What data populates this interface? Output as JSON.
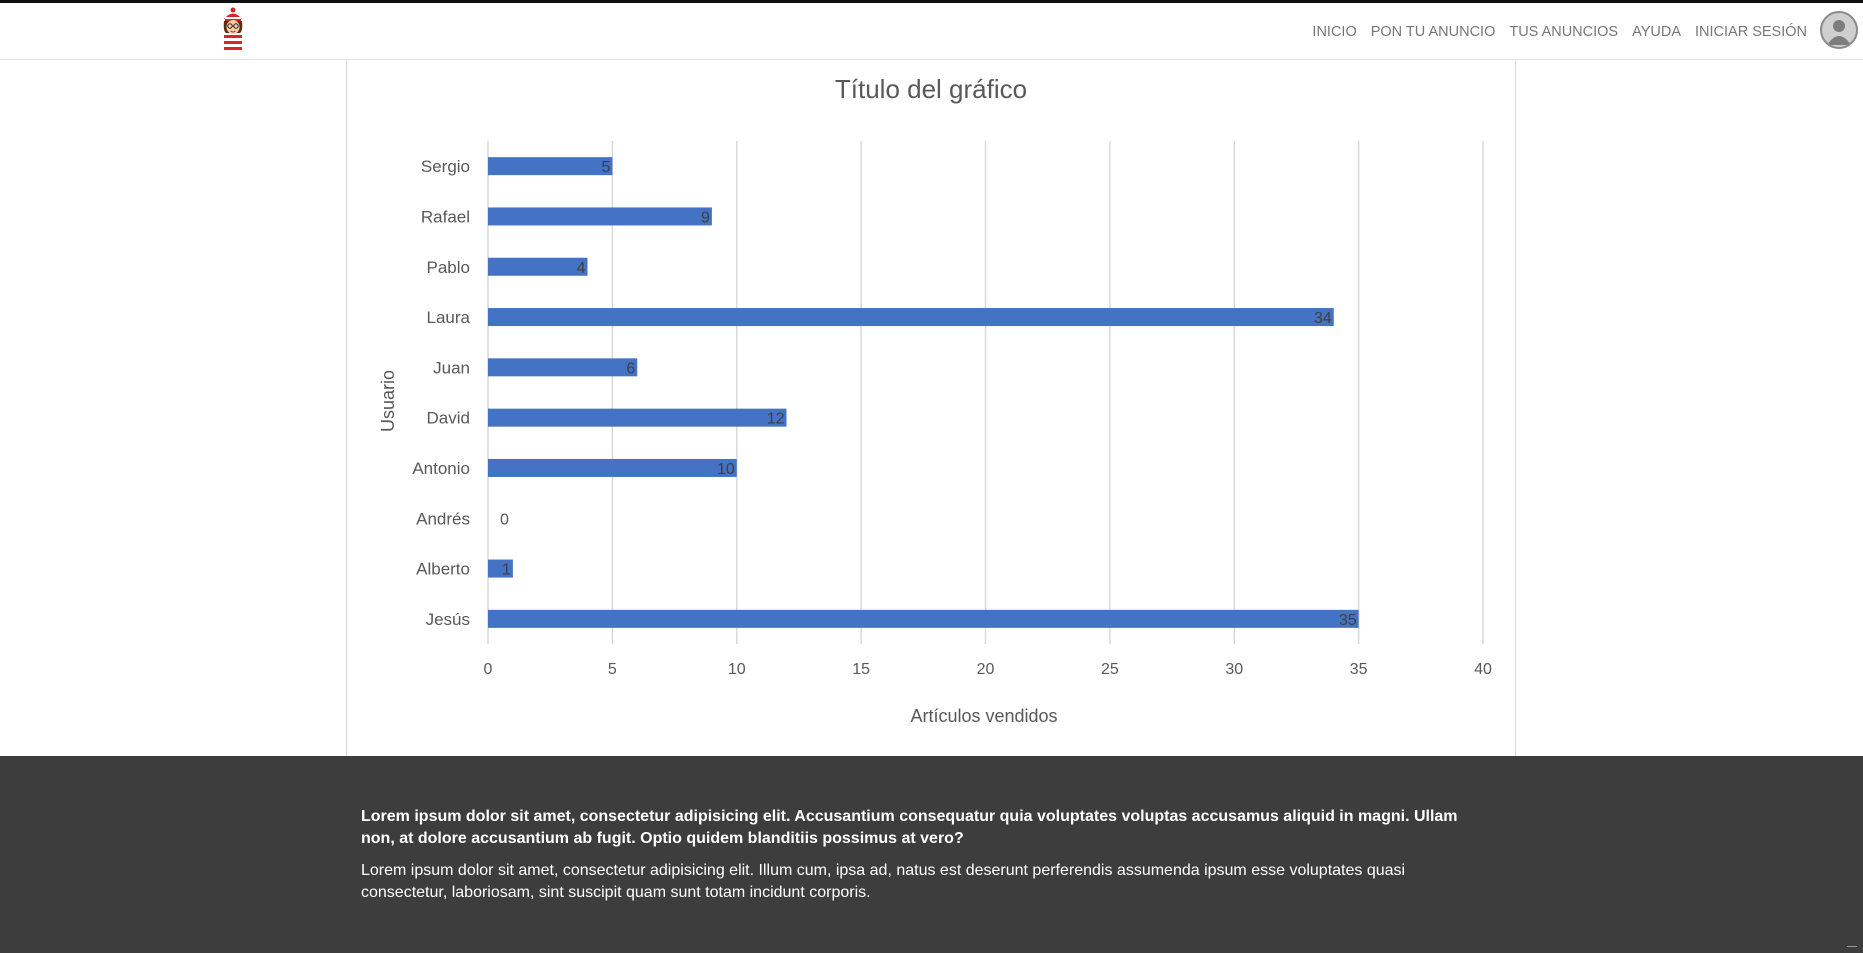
{
  "nav": {
    "links": [
      {
        "label": "INICIO"
      },
      {
        "label": "PON TU ANUNCIO"
      },
      {
        "label": "TUS ANUNCIOS"
      },
      {
        "label": "AYUDA"
      },
      {
        "label": "INICIAR SESIÓN"
      }
    ],
    "logo_icon": "waldo-logo-icon",
    "avatar_icon": "user-avatar-icon"
  },
  "colors": {
    "bar": "#4472c4",
    "footer_bg": "#3d3d3d",
    "nav_text": "#777777"
  },
  "chart_data": {
    "type": "bar",
    "orientation": "horizontal",
    "title": "Título del gráfico",
    "xlabel": "Artículos vendidos",
    "ylabel": "Usuario",
    "categories": [
      "Sergio",
      "Rafael",
      "Pablo",
      "Laura",
      "Juan",
      "David",
      "Antonio",
      "Andrés",
      "Alberto",
      "Jesús"
    ],
    "values": [
      5,
      9,
      4,
      34,
      6,
      12,
      10,
      0,
      1,
      35
    ],
    "xlim": [
      0,
      40
    ],
    "xticks": [
      0,
      5,
      10,
      15,
      20,
      25,
      30,
      35,
      40
    ],
    "grid": "vertical",
    "data_labels": true
  },
  "footer": {
    "bold_text": "Lorem ipsum dolor sit amet, consectetur adipisicing elit. Accusantium consequatur quia voluptates voluptas accusamus aliquid in magni. Ullam non, at dolore accusantium ab fugit. Optio quidem blanditiis possimus at vero?",
    "text": "Lorem ipsum dolor sit amet, consectetur adipisicing elit. Illum cum, ipsa ad, natus est deserunt perferendis assumenda ipsum esse voluptates quasi consectetur, laboriosam, sint suscipit quam sunt totam incidunt corporis."
  }
}
